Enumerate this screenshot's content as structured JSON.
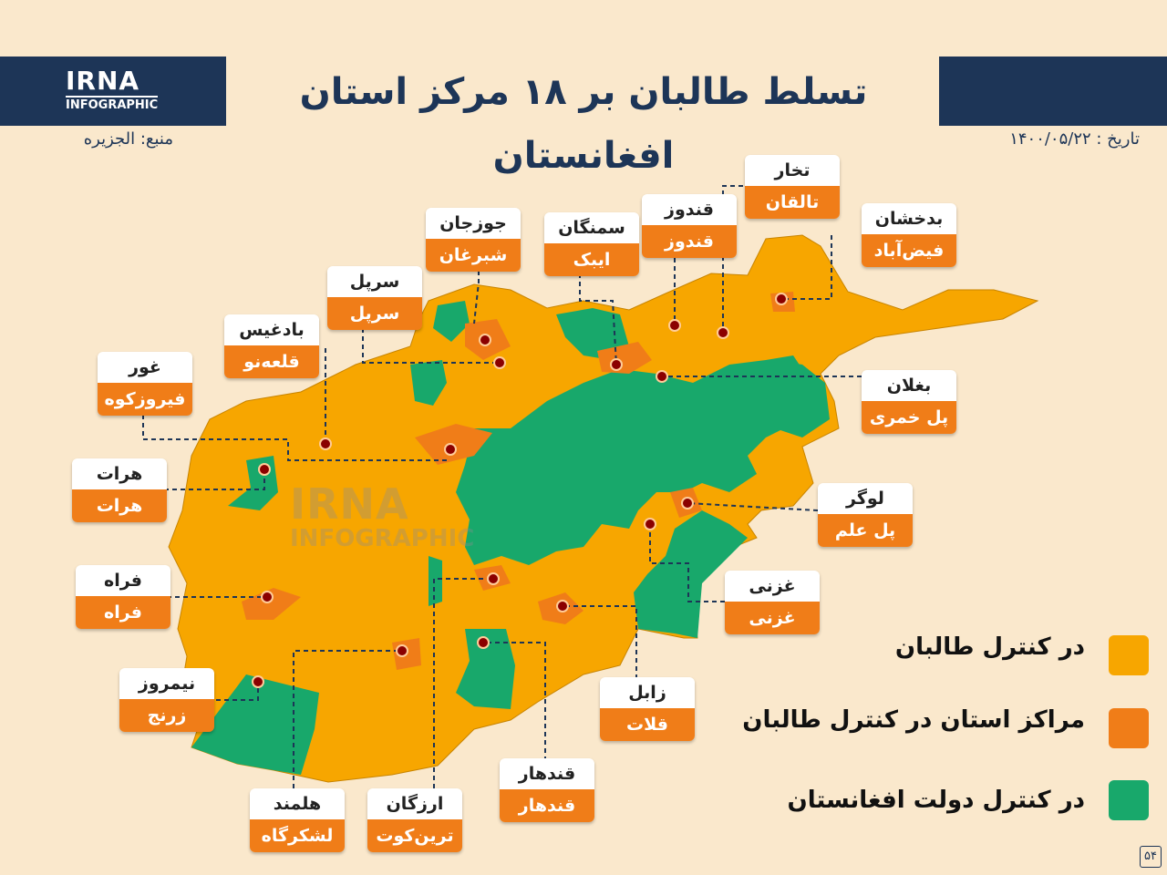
{
  "header": {
    "logo_top": "IRNA",
    "logo_bottom": "INFOGRAPHIC",
    "title": "تسلط طالبان بر ۱۸ مرکز استان افغانستان",
    "source": "منبع: الجزیره",
    "date": "تاریخ : ۱۴۰۰/۰۵/۲۲"
  },
  "watermark": {
    "top": "IRNA",
    "bottom": "INFOGRAPHIC"
  },
  "colors": {
    "taliban": "#f7a600",
    "center": "#f07d18",
    "government": "#18a86b",
    "header": "#1d3557",
    "background": "#fae8cc"
  },
  "labels": [
    {
      "province": "تخار",
      "capital": "تالقان"
    },
    {
      "province": "قندوز",
      "capital": "قندوز"
    },
    {
      "province": "بدخشان",
      "capital": "فیض‌آباد"
    },
    {
      "province": "سمنگان",
      "capital": "ایبک"
    },
    {
      "province": "جوزجان",
      "capital": "شبرغان"
    },
    {
      "province": "سرپل",
      "capital": "سرپل"
    },
    {
      "province": "بادغیس",
      "capital": "قلعه‌نو"
    },
    {
      "province": "غور",
      "capital": "فیروزکوه"
    },
    {
      "province": "بغلان",
      "capital": "پل خمری"
    },
    {
      "province": "هرات",
      "capital": "هرات"
    },
    {
      "province": "لوگر",
      "capital": "پل علم"
    },
    {
      "province": "فراه",
      "capital": "فراه"
    },
    {
      "province": "غزنی",
      "capital": "غزنی"
    },
    {
      "province": "نیمروز",
      "capital": "زرنج"
    },
    {
      "province": "زابل",
      "capital": "قلات"
    },
    {
      "province": "قندهار",
      "capital": "قندهار"
    },
    {
      "province": "هلمند",
      "capital": "لشکرگاه"
    },
    {
      "province": "ارزگان",
      "capital": "ترین‌کوت"
    }
  ],
  "legend": [
    {
      "label": "در کنترل طالبان",
      "color": "#f7a600"
    },
    {
      "label": "مراکز استان در کنترل طالبان",
      "color": "#f07d18"
    },
    {
      "label": "در کنترل دولت افغانستان",
      "color": "#18a86b"
    }
  ],
  "page_number": "۵۴"
}
